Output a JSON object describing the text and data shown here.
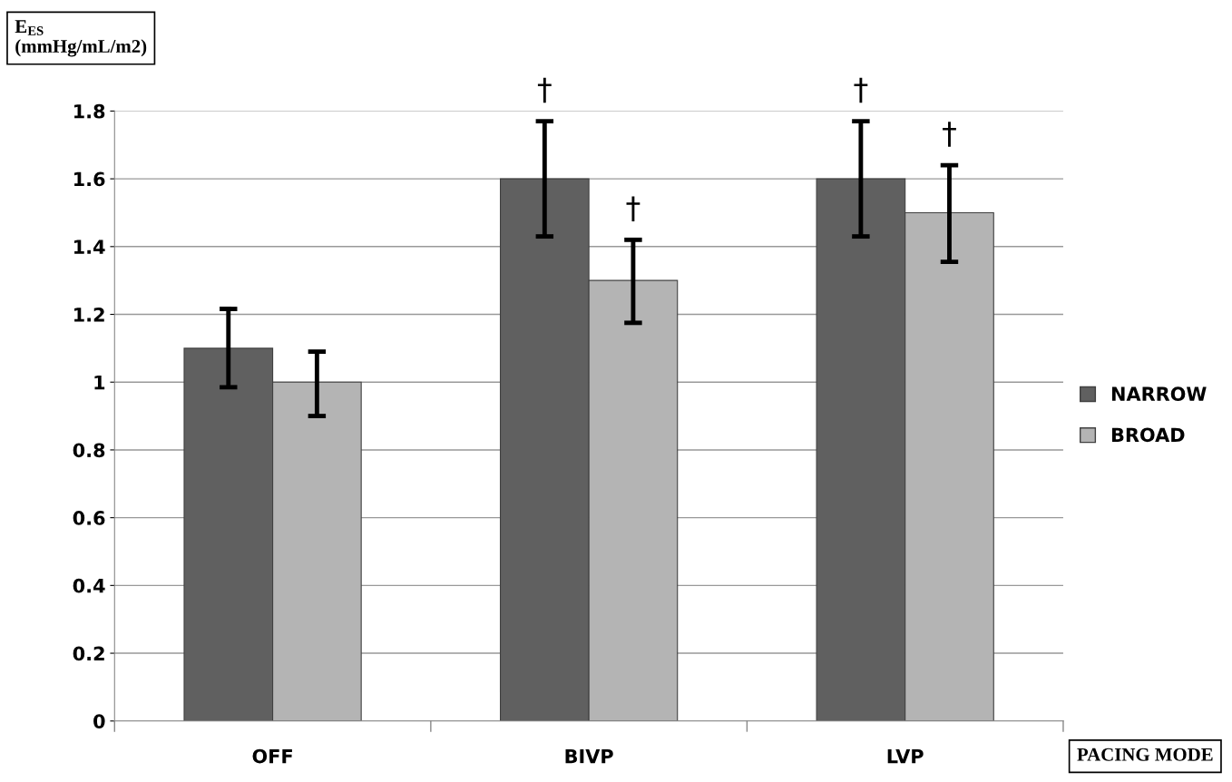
{
  "chart_data": {
    "type": "bar",
    "ylabel": "E$_{ES}$\n(mmHg/mL/m2)",
    "xlabel": "PACING MODE",
    "categories": [
      "OFF",
      "BIVP",
      "LVP"
    ],
    "series": [
      {
        "name": "NARROW",
        "color": "#606060",
        "values": [
          1.1,
          1.6,
          1.6
        ],
        "errors": [
          [
            0.985,
            1.216
          ],
          [
            1.43,
            1.77
          ],
          [
            1.43,
            1.77
          ]
        ],
        "value_labels": [
          null,
          "†",
          "†"
        ]
      },
      {
        "name": "BROAD",
        "color": "#b4b4b4",
        "values": [
          1.0,
          1.3,
          1.5
        ],
        "errors": [
          [
            0.9,
            1.09
          ],
          [
            1.175,
            1.42
          ],
          [
            1.355,
            1.64
          ]
        ],
        "value_labels": [
          null,
          "†",
          "†"
        ]
      }
    ],
    "ylim": [
      0,
      1.8
    ],
    "yticks": [
      0,
      0.2,
      0.4,
      0.6,
      0.8,
      1,
      1.2,
      1.4,
      1.6,
      1.8
    ],
    "grid": "y",
    "legend": "right"
  }
}
